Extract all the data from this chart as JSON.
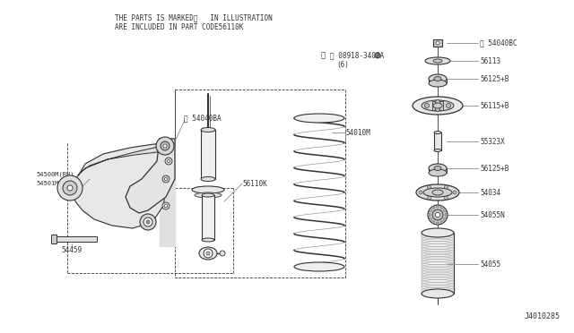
{
  "bg_color": "#ffffff",
  "lc": "#333333",
  "gray": "#888888",
  "title_text1": "THE PARTS IS MARKED※   IN ILLUSTRATION",
  "title_text2": "ARE INCLUDED IN PART CODE56110K",
  "diagram_id": "J4010285",
  "note_text": "※ Ⓝ 08918-3402A",
  "note_sub": "(6)"
}
